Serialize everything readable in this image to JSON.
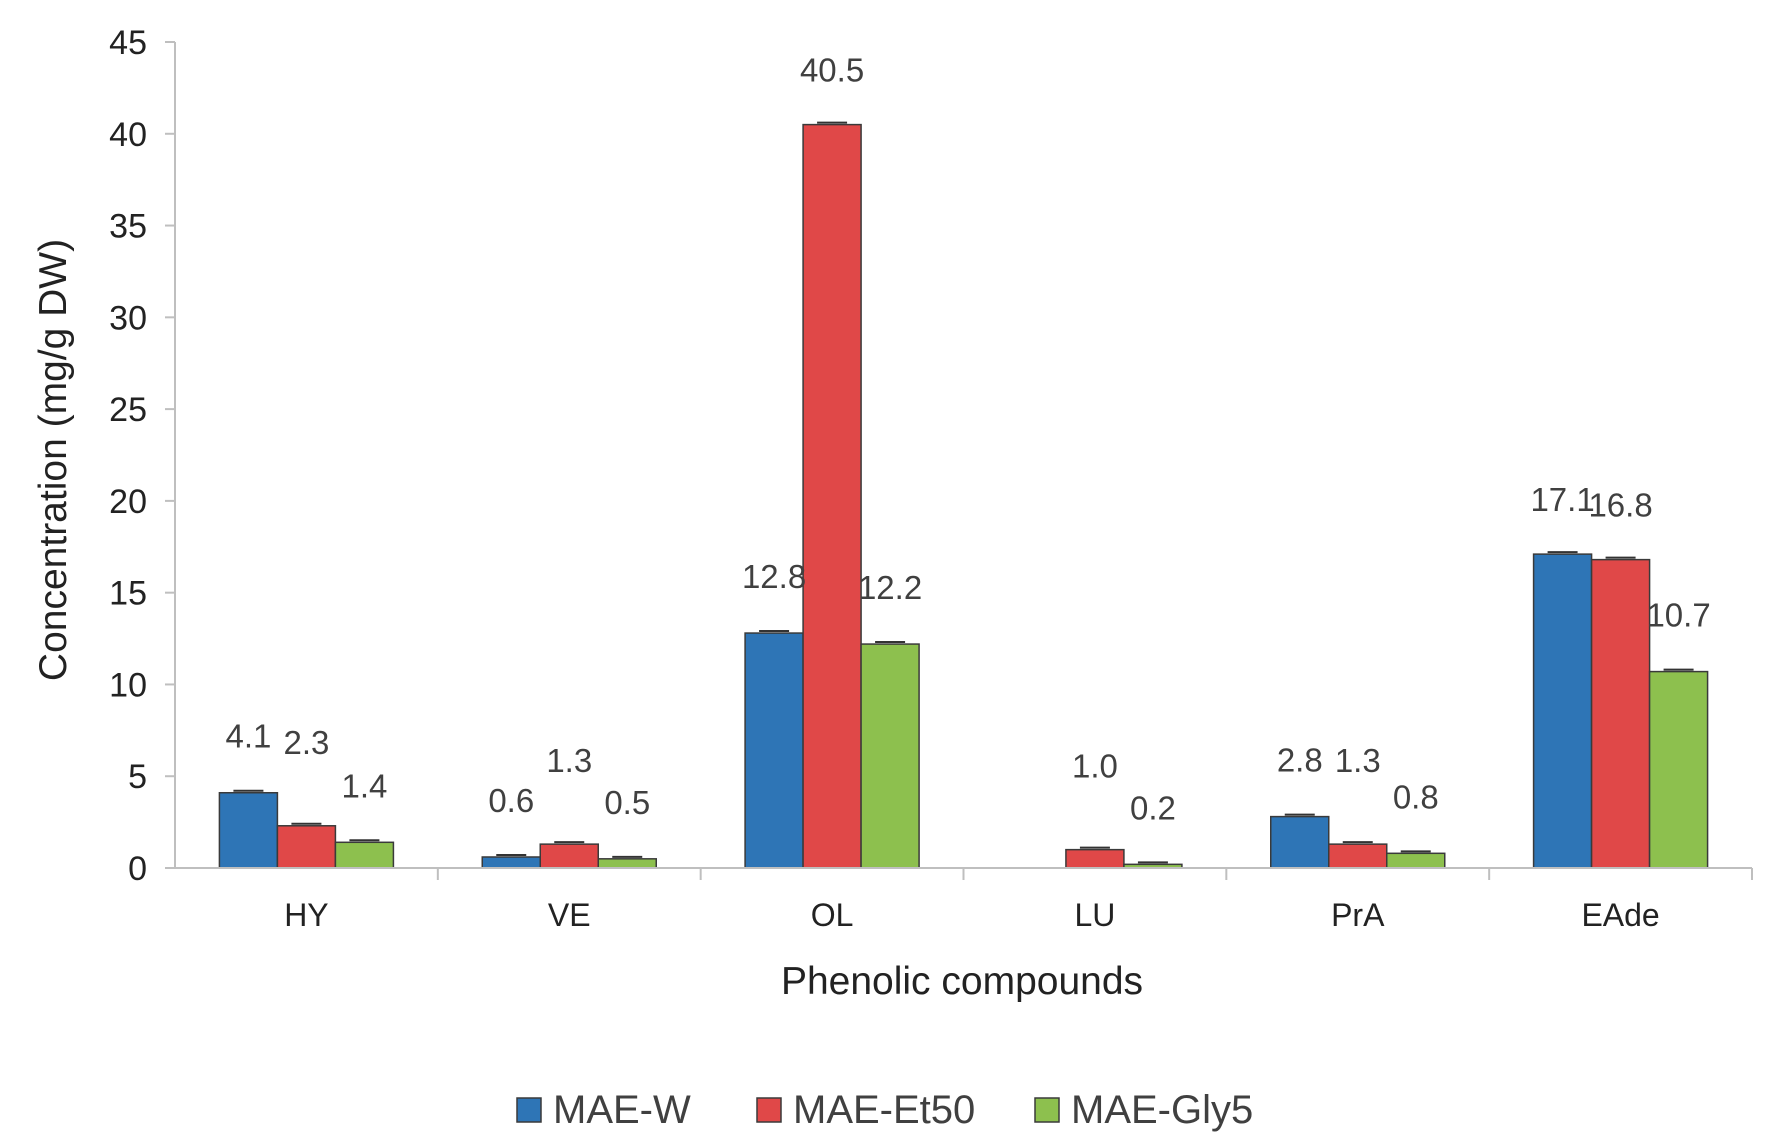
{
  "chart_data": {
    "type": "bar",
    "title": "",
    "xlabel": "Phenolic compounds",
    "ylabel": "Concentration (mg/g DW)",
    "ylim": [
      0,
      45
    ],
    "yticks": [
      0,
      5,
      10,
      15,
      20,
      25,
      30,
      35,
      40,
      45
    ],
    "grid": false,
    "legend_position": "bottom",
    "categories": [
      "HY",
      "VE",
      "OL",
      "LU",
      "PrA",
      "EAde"
    ],
    "series": [
      {
        "name": "MAE-W",
        "color": "#2E75B6",
        "values": [
          4.1,
          0.6,
          12.8,
          0,
          2.8,
          17.1
        ],
        "labels": [
          "4.1",
          "0.6",
          "12.8",
          "",
          "2.8",
          "17.1"
        ]
      },
      {
        "name": "MAE-Et50",
        "color": "#E04848",
        "values": [
          2.3,
          1.3,
          40.5,
          1.0,
          1.3,
          16.8
        ],
        "labels": [
          "2.3",
          "1.3",
          "40.5",
          "1.0",
          "1.3",
          "16.8"
        ]
      },
      {
        "name": "MAE-Gly5",
        "color": "#8DC04E",
        "values": [
          1.4,
          0.5,
          12.2,
          0.2,
          0.8,
          10.7
        ],
        "labels": [
          "1.4",
          "0.5",
          "12.2",
          "0.2",
          "0.8",
          "10.7"
        ]
      }
    ]
  }
}
